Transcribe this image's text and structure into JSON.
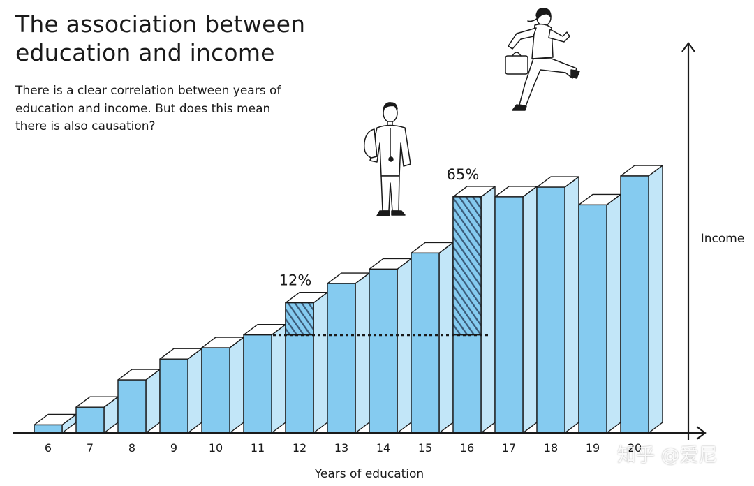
{
  "title": "The association between education and income",
  "subtitle": "There is a clear correlation between years of education and income. But does this mean there is also causation?",
  "watermark": "知乎 @爱尼",
  "colors": {
    "bar_front": "#85cbf0",
    "bar_side": "#c2e6f8",
    "bar_top": "#ffffff",
    "outline": "#1a1a1a",
    "hatch": "#3a5a78"
  },
  "chart_data": {
    "type": "bar",
    "xlabel": "Years of education",
    "ylabel": "Income",
    "categories": [
      "6",
      "7",
      "8",
      "9",
      "10",
      "11",
      "12",
      "13",
      "14",
      "15",
      "16",
      "17",
      "18",
      "19",
      "20"
    ],
    "values": [
      5,
      16,
      33,
      46,
      53,
      61,
      81,
      93,
      102,
      112,
      147,
      147,
      153,
      142,
      160
    ],
    "ylim": [
      0,
      200
    ],
    "reference_line": {
      "from_category": "12",
      "to_category": "16",
      "value": 61
    },
    "annotations": [
      {
        "category": "12",
        "label": "12%",
        "hatched_from": 61
      },
      {
        "category": "16",
        "label": "65%",
        "hatched_from": 61
      }
    ],
    "grid": false,
    "legend": "none"
  }
}
